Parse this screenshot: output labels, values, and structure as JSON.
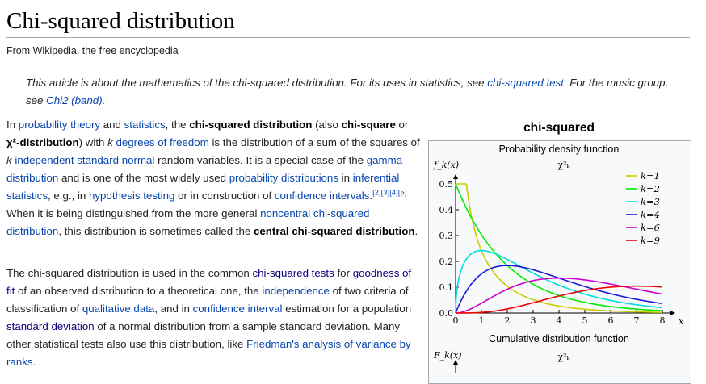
{
  "page": {
    "title": "Chi-squared distribution",
    "tagline": "From Wikipedia, the free encyclopedia"
  },
  "hatnote": {
    "t1": "This article is about the mathematics of the chi-squared distribution. For its uses in statistics, see ",
    "l1": "chi-squared test",
    "t2": ". For the music group, see ",
    "l2": "Chi2 (band)",
    "t3": "."
  },
  "para1": {
    "t1": "In ",
    "l1": "probability theory",
    "t2": " and ",
    "l2": "statistics",
    "t3": ", the ",
    "b1": "chi-squared distribution",
    "t4": " (also ",
    "b2": "chi-square",
    "t5": " or ",
    "b3": "χ²-distribution",
    "t6": ") with ",
    "i1": "k",
    "t7": " ",
    "l3": "degrees of freedom",
    "t8": " is the distribution of a sum of the squares of ",
    "i2": "k",
    "t9": " ",
    "l4": "independent",
    "t10": " ",
    "l5": "standard normal",
    "t11": " random variables. It is a special case of the ",
    "l6": "gamma distribution",
    "t12": " and is one of the most widely used ",
    "l7": "probability distributions",
    "t13": " in ",
    "l8": "inferential statistics",
    "t14": ", e.g., in ",
    "l9": "hypothesis testing",
    "t15": " or in construction of ",
    "l10": "confidence intervals",
    "t16": ".",
    "refs": "[2][3][4][5]",
    "t17": " When it is being distinguished from the more general ",
    "l11": "noncentral chi-squared distribution",
    "t18": ", this distribution is sometimes called the ",
    "b4": "central chi-squared distribution",
    "t19": "."
  },
  "para2": {
    "t1": "The chi-squared distribution is used in the common ",
    "l1": "chi-squared tests",
    "t2": " for ",
    "l2": "goodness of fit",
    "t3": " of an observed distribution to a theoretical one, the ",
    "l3": "independence",
    "t4": " of two criteria of classification of ",
    "l4": "qualitative data",
    "t5": ", and in ",
    "l5": "confidence interval",
    "t6": " estimation for a population ",
    "l6": "standard deviation",
    "t7": " of a normal distribution from a sample standard deviation. Many other statistical tests also use this distribution, like ",
    "l7": "Friedman's analysis of variance by ranks",
    "t8": "."
  },
  "infobox": {
    "title": "chi-squared",
    "pdf_caption": "Probability density function",
    "cdf_caption": "Cumulative distribution function",
    "pdf_ylabel": "f_k(x)",
    "cdf_ylabel": "F_k(x)",
    "chi_label": "χ²ₖ",
    "x_axis_label": "x"
  },
  "chart_data": {
    "type": "line",
    "title": "Probability density function",
    "xlabel": "x",
    "ylabel": "f_k(x)",
    "xlim": [
      0,
      8
    ],
    "ylim": [
      0,
      0.5
    ],
    "xticks": [
      0,
      1,
      2,
      3,
      4,
      5,
      6,
      7,
      8
    ],
    "yticks": [
      0.0,
      0.1,
      0.2,
      0.3,
      0.4,
      0.5
    ],
    "legend_position": "top-right",
    "series": [
      {
        "name": "k=1",
        "k": 1,
        "color": "#cccc00"
      },
      {
        "name": "k=2",
        "k": 2,
        "color": "#00ee00"
      },
      {
        "name": "k=3",
        "k": 3,
        "color": "#00dddd"
      },
      {
        "name": "k=4",
        "k": 4,
        "color": "#1a1add"
      },
      {
        "name": "k=6",
        "k": 6,
        "color": "#cc00cc"
      },
      {
        "name": "k=9",
        "k": 9,
        "color": "#ee0000"
      }
    ]
  }
}
